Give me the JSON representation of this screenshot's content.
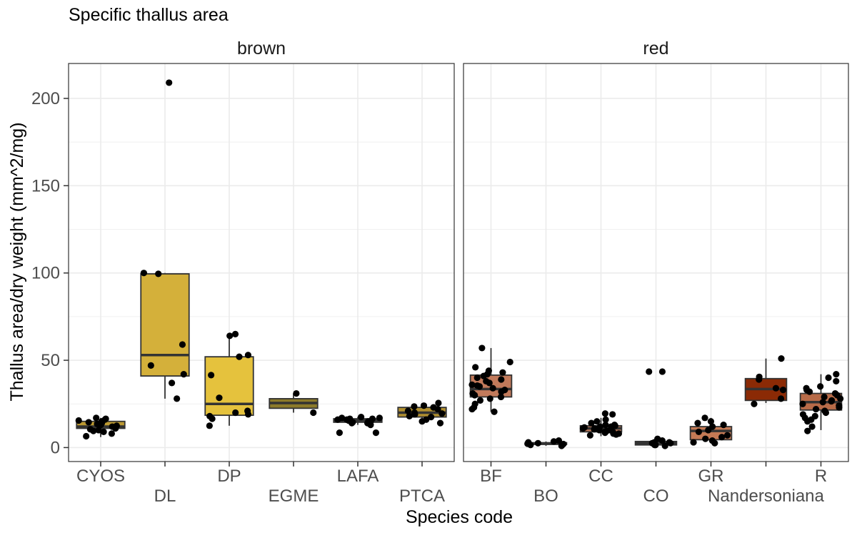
{
  "chart_data": {
    "type": "box",
    "title": "Specific thallus area",
    "xlabel": "Species code",
    "ylabel": "Thallus area/dry weight (mm^2/mg)",
    "ylim": [
      -8,
      220
    ],
    "y_ticks": [
      0,
      50,
      100,
      150,
      200
    ],
    "grid": true,
    "panels": [
      {
        "name": "brown",
        "categories": [
          {
            "code": "CYOS",
            "fill": "#bd9a32",
            "box": {
              "q1": 11,
              "median": 12,
              "q3": 15,
              "whisker_low": 6,
              "whisker_high": 17
            },
            "points": [
              6.5,
              8,
              9,
              10,
              10.5,
              11,
              12,
              13,
              14,
              15,
              15.5,
              16,
              16.5,
              17,
              12.5,
              9.5,
              13.5,
              14.5
            ]
          },
          {
            "code": "DL",
            "fill": "#d4b03a",
            "box": {
              "q1": 41,
              "median": 53,
              "q3": 99.5,
              "whisker_low": 28,
              "whisker_high": 100
            },
            "points": [
              209,
              100,
              99.5,
              59,
              47,
              42,
              37,
              28
            ]
          },
          {
            "code": "DP",
            "fill": "#e5c23d",
            "box": {
              "q1": 18.5,
              "median": 25,
              "q3": 52,
              "whisker_low": 12.5,
              "whisker_high": 65
            },
            "points": [
              65,
              64,
              53,
              52,
              41.5,
              28.5,
              21,
              20,
              19,
              18,
              16.5,
              12.5
            ]
          },
          {
            "code": "EGME",
            "fill": "#8c7a2a",
            "box": {
              "q1": 22.5,
              "median": 25.5,
              "q3": 28,
              "whisker_low": 20,
              "whisker_high": 31
            },
            "points": [
              31,
              20
            ]
          },
          {
            "code": "LAFA",
            "fill": "#7a6a2c",
            "box": {
              "q1": 14.5,
              "median": 15.5,
              "q3": 16.5,
              "whisker_low": 13,
              "whisker_high": 17.5
            },
            "points": [
              14,
              14.5,
              15,
              15.5,
              16,
              16.5,
              17,
              17.5,
              16.5,
              15,
              14,
              13,
              8.5,
              8.5,
              16,
              17
            ]
          },
          {
            "code": "PTCA",
            "fill": "#b08f2f",
            "box": {
              "q1": 17.5,
              "median": 20,
              "q3": 23,
              "whisker_low": 14,
              "whisker_high": 25.5
            },
            "points": [
              23.5,
              22,
              21,
              20,
              19.5,
              18,
              17.5,
              16,
              15,
              14,
              25.5,
              24,
              23,
              19
            ]
          }
        ]
      },
      {
        "name": "red",
        "categories": [
          {
            "code": "BF",
            "fill": "#c27a5b",
            "box": {
              "q1": 29,
              "median": 33.5,
              "q3": 41.5,
              "whisker_low": 20.5,
              "whisker_high": 57
            },
            "points": [
              57,
              49,
              46,
              44,
              43,
              42,
              41,
              40,
              38,
              37,
              36,
              35,
              34,
              33,
              32,
              31,
              30,
              29,
              28,
              27,
              25,
              23,
              22,
              20.5,
              35.5,
              39
            ]
          },
          {
            "code": "BO",
            "fill": "#5a3626",
            "box": {
              "q1": 1.8,
              "median": 2.3,
              "q3": 2.8,
              "whisker_low": 1,
              "whisker_high": 3.5
            },
            "points": [
              1,
              1.5,
              2,
              2.5,
              3,
              3.5,
              4,
              2.2
            ]
          },
          {
            "code": "CC",
            "fill": "#bf7b5a",
            "box": {
              "q1": 9,
              "median": 11,
              "q3": 12.5,
              "whisker_low": 6.5,
              "whisker_high": 17
            },
            "points": [
              19.5,
              19,
              16,
              15,
              14,
              13,
              12.5,
              12,
              11.5,
              11,
              10.5,
              10,
              9.5,
              9,
              8.5,
              8,
              7.5,
              7,
              10,
              12,
              11,
              13,
              9,
              8
            ]
          },
          {
            "code": "CO",
            "fill": "#6e4434",
            "box": {
              "q1": 1.5,
              "median": 2.5,
              "q3": 3.5,
              "whisker_low": 1,
              "whisker_high": 5
            },
            "points": [
              43.5,
              43.5,
              5,
              4,
              3,
              2.5,
              2,
              1.5,
              1,
              1.5,
              2.5,
              3
            ]
          },
          {
            "code": "GR",
            "fill": "#c47a55",
            "box": {
              "q1": 4.5,
              "median": 9.5,
              "q3": 12,
              "whisker_low": 2.5,
              "whisker_high": 17
            },
            "points": [
              17,
              15,
              13,
              12,
              10,
              9,
              7,
              6,
              5,
              4,
              3,
              2.5,
              14
            ]
          },
          {
            "code": "Nandersoniana",
            "fill": "#8b2a05",
            "box": {
              "q1": 27,
              "median": 33.5,
              "q3": 39.5,
              "whisker_low": 25.5,
              "whisker_high": 51
            },
            "points": [
              51,
              40.5,
              39,
              34,
              33,
              28,
              25
            ]
          },
          {
            "code": "R",
            "fill": "#b86b48",
            "box": {
              "q1": 21.5,
              "median": 26,
              "q3": 31,
              "whisker_low": 10,
              "whisker_high": 42
            },
            "points": [
              42,
              40,
              38,
              35,
              34,
              32,
              31,
              30,
              29,
              28,
              27,
              26,
              25,
              24,
              23,
              22,
              21,
              20,
              19,
              18,
              17,
              16,
              15,
              12,
              9.5,
              33,
              26.5
            ]
          }
        ]
      }
    ]
  }
}
